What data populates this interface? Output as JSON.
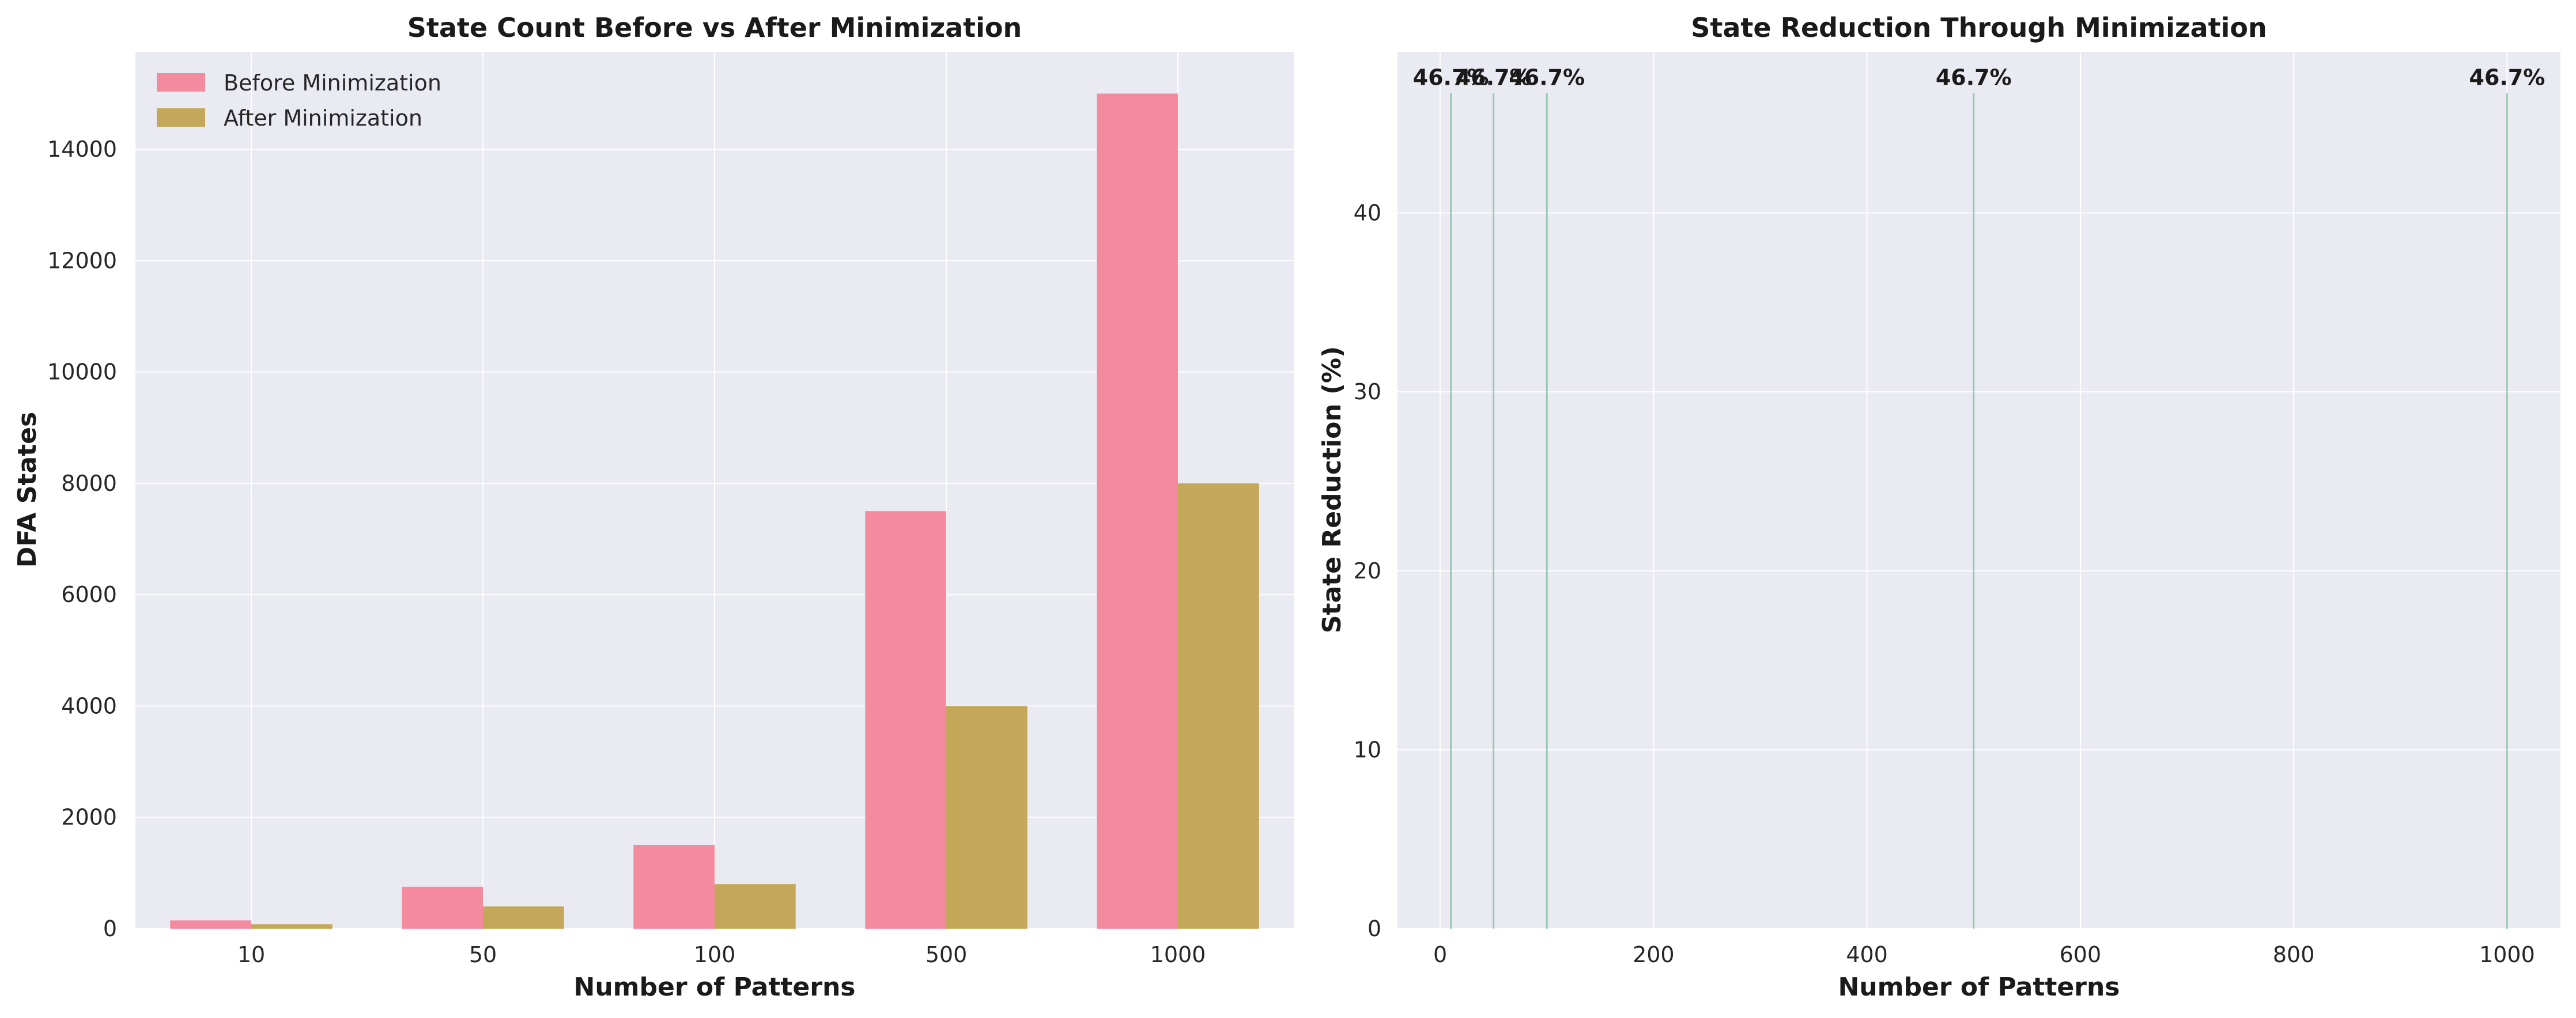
{
  "colors": {
    "before": "#f48a9e",
    "after": "#c4a758",
    "reduction_line": "#4caf82",
    "plot_bg": "#eaeaf2",
    "grid": "#ffffff"
  },
  "chart_data": [
    {
      "type": "bar",
      "title": "State Count Before vs After Minimization",
      "xlabel": "Number of Patterns",
      "ylabel": "DFA States",
      "categories": [
        "10",
        "50",
        "100",
        "500",
        "1000"
      ],
      "series": [
        {
          "name": "Before Minimization",
          "values": [
            150,
            750,
            1500,
            7500,
            15000
          ]
        },
        {
          "name": "After Minimization",
          "values": [
            80,
            400,
            800,
            4000,
            8000
          ]
        }
      ],
      "ylim": [
        0,
        15750
      ],
      "yticks": [
        0,
        2000,
        4000,
        6000,
        8000,
        10000,
        12000,
        14000
      ],
      "legend": "top-left",
      "grid": true
    },
    {
      "type": "bar",
      "title": "State Reduction Through Minimization",
      "xlabel": "Number of Patterns",
      "ylabel": "State Reduction (%)",
      "x": [
        10,
        50,
        100,
        500,
        1000
      ],
      "values": [
        46.7,
        46.7,
        46.7,
        46.7,
        46.7
      ],
      "data_labels": [
        "46.7%",
        "46.7%",
        "46.7%",
        "46.7%",
        "46.7%"
      ],
      "xlim": [
        -40,
        1050
      ],
      "ylim": [
        0,
        49
      ],
      "xticks": [
        0,
        200,
        400,
        600,
        800,
        1000
      ],
      "yticks": [
        0,
        10,
        20,
        30,
        40
      ],
      "grid": true
    }
  ]
}
